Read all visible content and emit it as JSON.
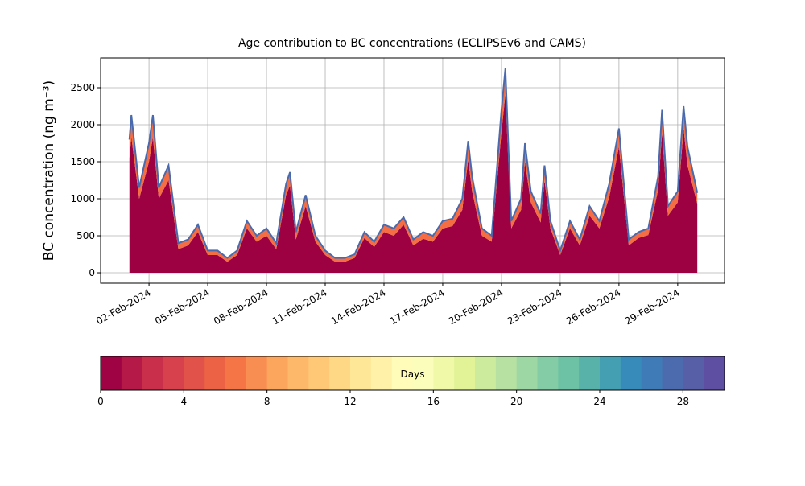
{
  "chart_data": {
    "type": "stacked_area",
    "title": "Age contribution to BC concentrations (ECLIPSEv6 and CAMS)",
    "ylabel": "BC concentration (ng m⁻³)",
    "x": [
      1,
      1.1,
      1.5,
      2,
      2.2,
      2.5,
      3,
      3.5,
      4,
      4.5,
      5,
      5.5,
      6,
      6.5,
      7,
      7.5,
      8,
      8.5,
      9,
      9.2,
      9.5,
      10,
      10.5,
      11,
      11.5,
      12,
      12.5,
      13,
      13.5,
      14,
      14.5,
      15,
      15.5,
      16,
      16.5,
      17,
      17.5,
      18,
      18.3,
      18.5,
      19,
      19.5,
      20,
      20.2,
      20.5,
      21,
      21.2,
      21.5,
      22,
      22.2,
      22.5,
      23,
      23.5,
      24,
      24.5,
      25,
      25.5,
      26,
      26.5,
      27,
      27.5,
      28,
      28.2,
      28.5,
      29,
      29.3,
      29.5,
      30
    ],
    "series": [
      {
        "color": "#9e0142",
        "values": [
          1550,
          1830,
          1000,
          1500,
          1830,
          1000,
          1250,
          320,
          370,
          550,
          240,
          240,
          150,
          240,
          600,
          420,
          500,
          320,
          1050,
          1180,
          450,
          900,
          420,
          240,
          150,
          150,
          200,
          470,
          350,
          550,
          500,
          650,
          370,
          460,
          420,
          600,
          630,
          850,
          1530,
          1100,
          500,
          420,
          1900,
          2410,
          600,
          850,
          1500,
          950,
          680,
          1250,
          600,
          240,
          600,
          370,
          770,
          600,
          1020,
          1700,
          370,
          470,
          510,
          1120,
          1900,
          770,
          950,
          1950,
          1450,
          930
        ]
      },
      {
        "color": "#f46d43",
        "values": [
          250,
          300,
          150,
          250,
          300,
          150,
          200,
          80,
          80,
          100,
          60,
          60,
          50,
          60,
          100,
          80,
          100,
          80,
          150,
          180,
          100,
          150,
          80,
          60,
          50,
          50,
          50,
          80,
          70,
          100,
          100,
          100,
          80,
          90,
          80,
          100,
          100,
          150,
          250,
          200,
          100,
          80,
          300,
          350,
          100,
          150,
          250,
          150,
          120,
          200,
          100,
          60,
          100,
          80,
          130,
          100,
          180,
          250,
          80,
          80,
          90,
          180,
          300,
          130,
          150,
          300,
          250,
          150
        ]
      }
    ],
    "line_color": "#4a6aad",
    "xlim": [
      -0.47,
      31.39
    ],
    "xticks": [
      {
        "value": 2,
        "label": "02-Feb-2024"
      },
      {
        "value": 5,
        "label": "05-Feb-2024"
      },
      {
        "value": 8,
        "label": "08-Feb-2024"
      },
      {
        "value": 11,
        "label": "11-Feb-2024"
      },
      {
        "value": 14,
        "label": "14-Feb-2024"
      },
      {
        "value": 17,
        "label": "17-Feb-2024"
      },
      {
        "value": 20,
        "label": "20-Feb-2024"
      },
      {
        "value": 23,
        "label": "23-Feb-2024"
      },
      {
        "value": 26,
        "label": "26-Feb-2024"
      },
      {
        "value": 29,
        "label": "29-Feb-2024"
      }
    ],
    "ylim": [
      -141,
      2902
    ],
    "yticks": [
      0,
      500,
      1000,
      1500,
      2000,
      2500
    ],
    "grid": true,
    "colorbar": {
      "label": "Days",
      "lim": [
        0,
        30
      ],
      "ticks": [
        0,
        4,
        8,
        12,
        16,
        20,
        24,
        28
      ],
      "colors": [
        "#a00343",
        "#b51947",
        "#c92e4b",
        "#d7414e",
        "#e1524a",
        "#eb6245",
        "#f57547",
        "#f98e52",
        "#fca55d",
        "#fdb869",
        "#fec877",
        "#fed885",
        "#fee797",
        "#fff1a8",
        "#fffbb9",
        "#fbfdba",
        "#f0f9a8",
        "#e2f397",
        "#cdeb9d",
        "#b6e1a2",
        "#9dd7a4",
        "#84cca5",
        "#6dc2a5",
        "#59b2aa",
        "#449fb2",
        "#368bbb",
        "#3f7cb7",
        "#4b6bae",
        "#5760a6",
        "#5e4fa2"
      ]
    }
  }
}
